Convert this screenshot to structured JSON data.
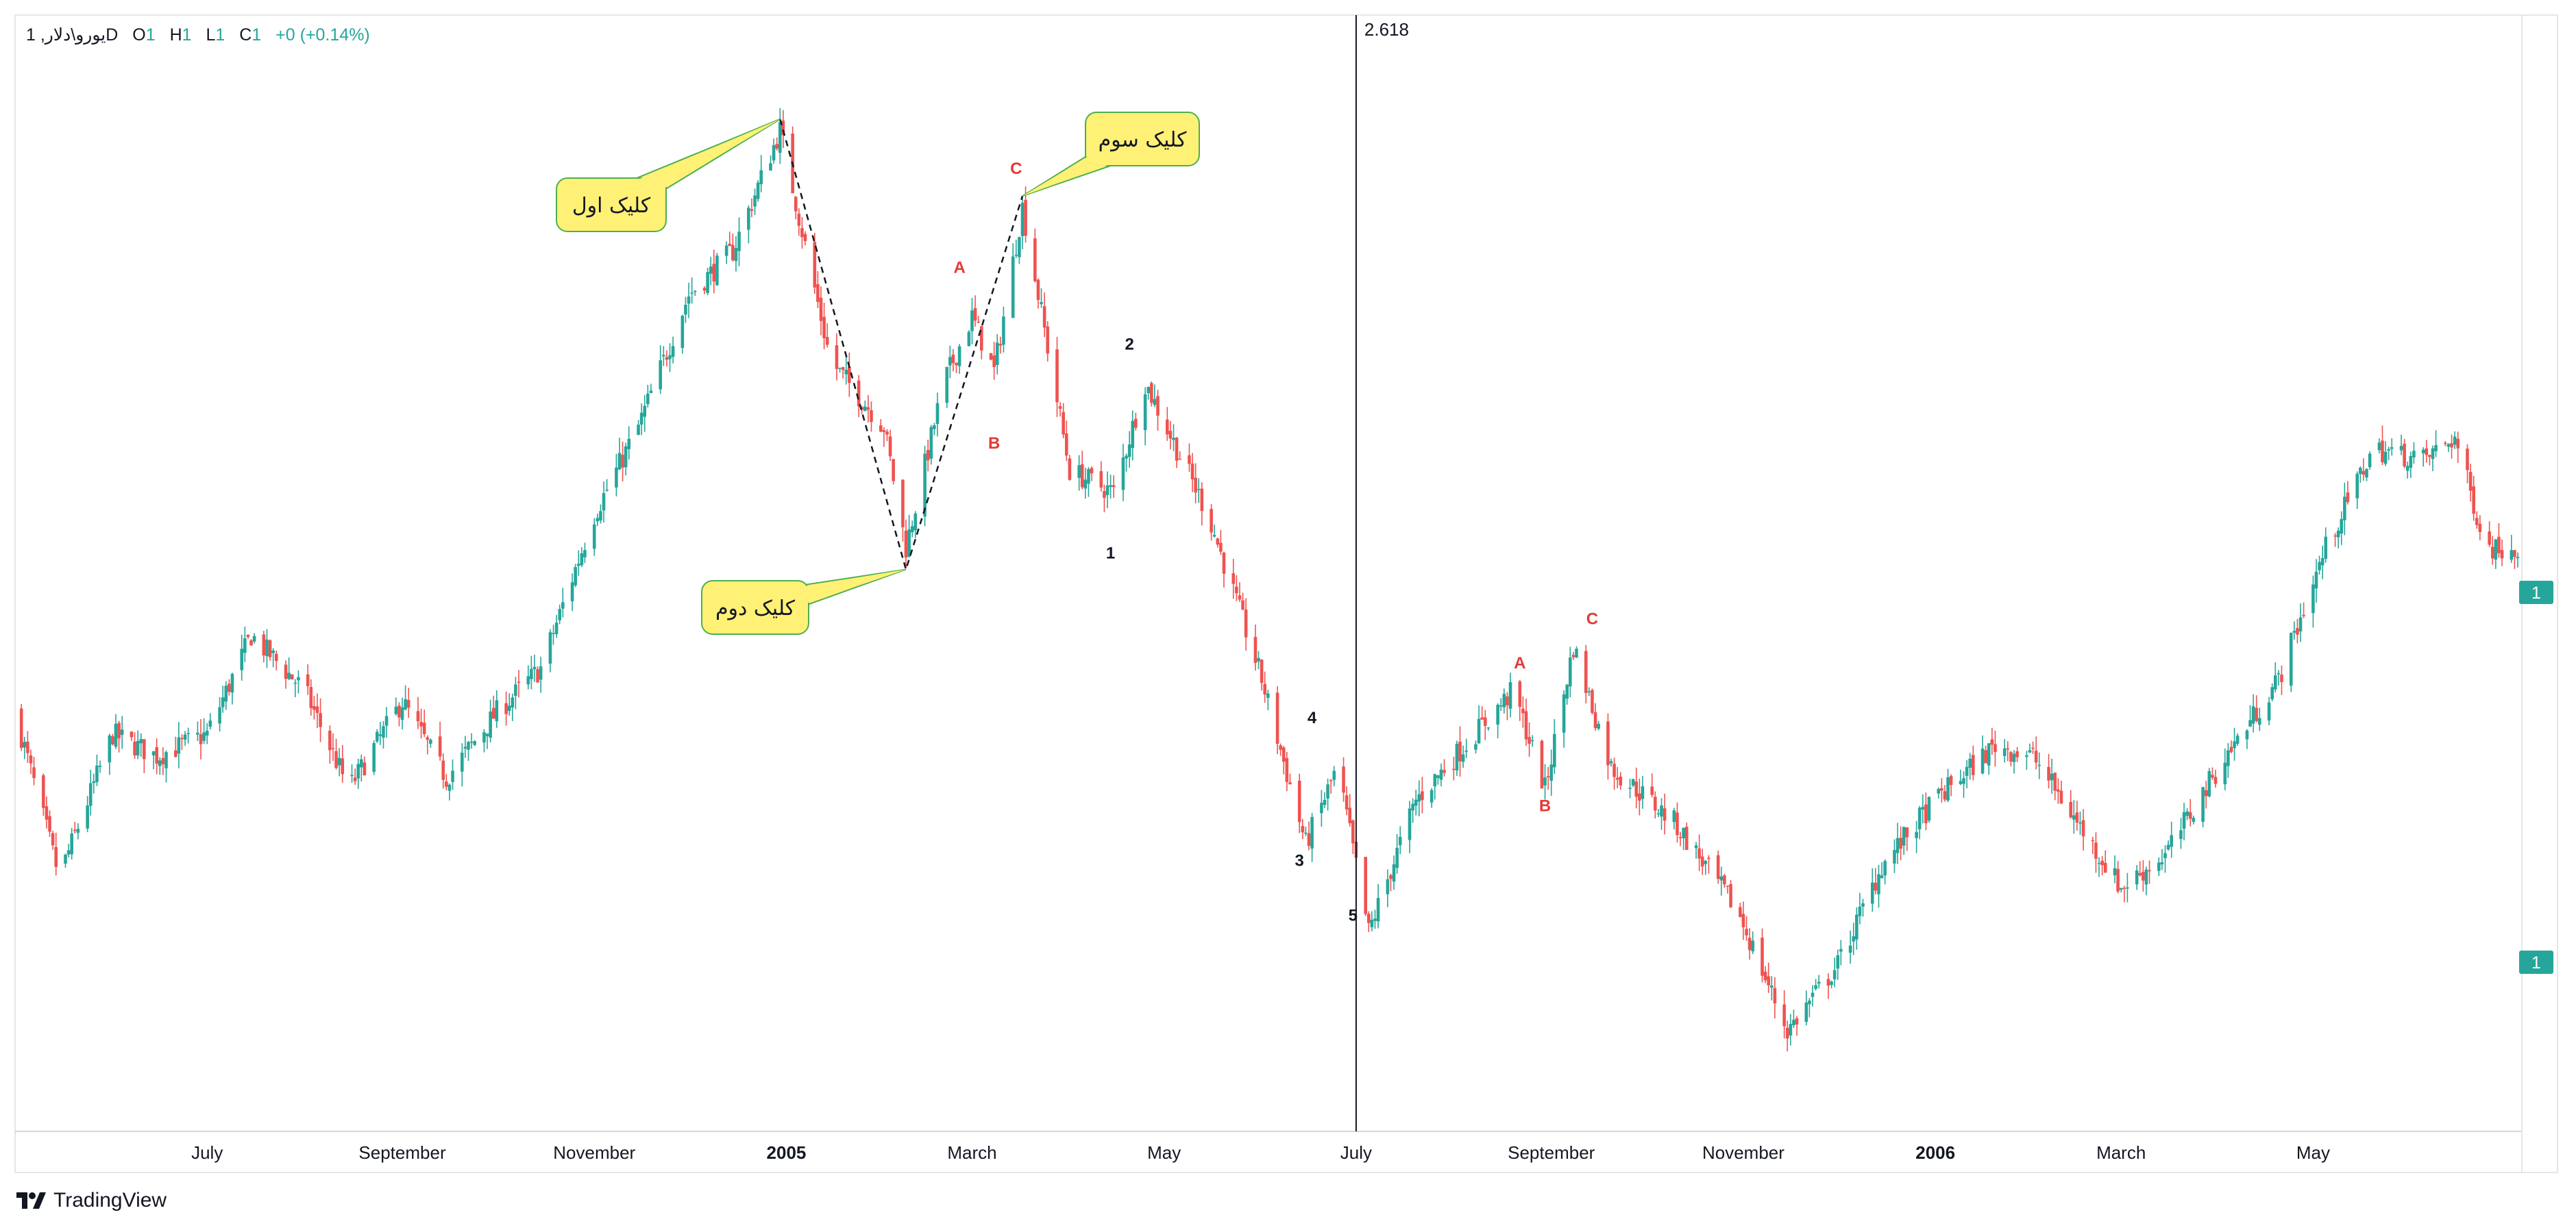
{
  "legend": {
    "symbol": "یورو\\دلار, 1D",
    "open_label": "O",
    "open_value": "1",
    "high_label": "H",
    "high_value": "1",
    "low_label": "L",
    "low_value": "1",
    "close_label": "C",
    "close_value": "1",
    "change": "+0 (+0.14%)"
  },
  "brand": {
    "name": "TradingView"
  },
  "colors": {
    "up": "#26a69a",
    "down": "#ef5350",
    "wave_label_red": "#e53935",
    "callout_fill": "#fff176",
    "callout_border": "#4caf50"
  },
  "cursor": {
    "label": "2.618"
  },
  "price_axis": {
    "last_price_label": "1",
    "other_price_label": "1"
  },
  "chart_data": {
    "type": "candlestick",
    "title": "",
    "x_tick_labels": [
      "July",
      "September",
      "November",
      "2005",
      "March",
      "May",
      "July",
      "September",
      "November",
      "2006",
      "March",
      "May"
    ],
    "x_tick_bold": [
      false,
      false,
      false,
      true,
      false,
      false,
      false,
      false,
      false,
      true,
      false,
      false
    ],
    "relative_price_path": {
      "description_of_units": "relative price level 0 (chart low) to 100 (chart high)",
      "points": [
        [
          "2004-05-01",
          40
        ],
        [
          "2004-05-15",
          25
        ],
        [
          "2004-06-01",
          38
        ],
        [
          "2004-06-15",
          36
        ],
        [
          "2004-07-01",
          38
        ],
        [
          "2004-07-15",
          47
        ],
        [
          "2004-08-01",
          42
        ],
        [
          "2004-08-15",
          33
        ],
        [
          "2004-09-01",
          41
        ],
        [
          "2004-09-15",
          34
        ],
        [
          "2004-10-01",
          40
        ],
        [
          "2004-10-15",
          44
        ],
        [
          "2004-11-01",
          58
        ],
        [
          "2004-11-15",
          66
        ],
        [
          "2004-12-01",
          78
        ],
        [
          "2004-12-15",
          82
        ],
        [
          "2004-12-30",
          93
        ],
        [
          "2005-01-15",
          72
        ],
        [
          "2005-02-01",
          66
        ],
        [
          "2005-02-08",
          55
        ],
        [
          "2005-02-20",
          70
        ],
        [
          "2005-03-01",
          76
        ],
        [
          "2005-03-08",
          71
        ],
        [
          "2005-03-17",
          86
        ],
        [
          "2005-04-01",
          62
        ],
        [
          "2005-04-15",
          60
        ],
        [
          "2005-04-25",
          70
        ],
        [
          "2005-05-15",
          58
        ],
        [
          "2005-06-01",
          43
        ],
        [
          "2005-06-15",
          28
        ],
        [
          "2005-06-25",
          35
        ],
        [
          "2005-07-05",
          20
        ],
        [
          "2005-07-20",
          32
        ],
        [
          "2005-08-20",
          42
        ],
        [
          "2005-08-30",
          33
        ],
        [
          "2005-09-08",
          46
        ],
        [
          "2005-09-20",
          35
        ],
        [
          "2005-10-10",
          30
        ],
        [
          "2005-10-30",
          22
        ],
        [
          "2005-11-15",
          11
        ],
        [
          "2005-12-01",
          17
        ],
        [
          "2005-12-15",
          26
        ],
        [
          "2006-01-01",
          32
        ],
        [
          "2006-01-20",
          37
        ],
        [
          "2006-02-01",
          36
        ],
        [
          "2006-02-15",
          30
        ],
        [
          "2006-03-01",
          24
        ],
        [
          "2006-03-15",
          27
        ],
        [
          "2006-04-01",
          35
        ],
        [
          "2006-04-20",
          43
        ],
        [
          "2006-05-05",
          55
        ],
        [
          "2006-05-20",
          64
        ],
        [
          "2006-06-05",
          63
        ],
        [
          "2006-06-15",
          65
        ],
        [
          "2006-06-25",
          55
        ]
      ]
    },
    "annotations": {
      "callouts": [
        "کلیک اول",
        "کلیک دوم",
        "کلیک سوم"
      ],
      "wave_labels_red": [
        "A",
        "B",
        "C",
        "A",
        "B",
        "C"
      ],
      "wave_labels_black": [
        "1",
        "2",
        "3",
        "4",
        "5"
      ]
    },
    "grid": false,
    "legend_position": "top-left"
  }
}
